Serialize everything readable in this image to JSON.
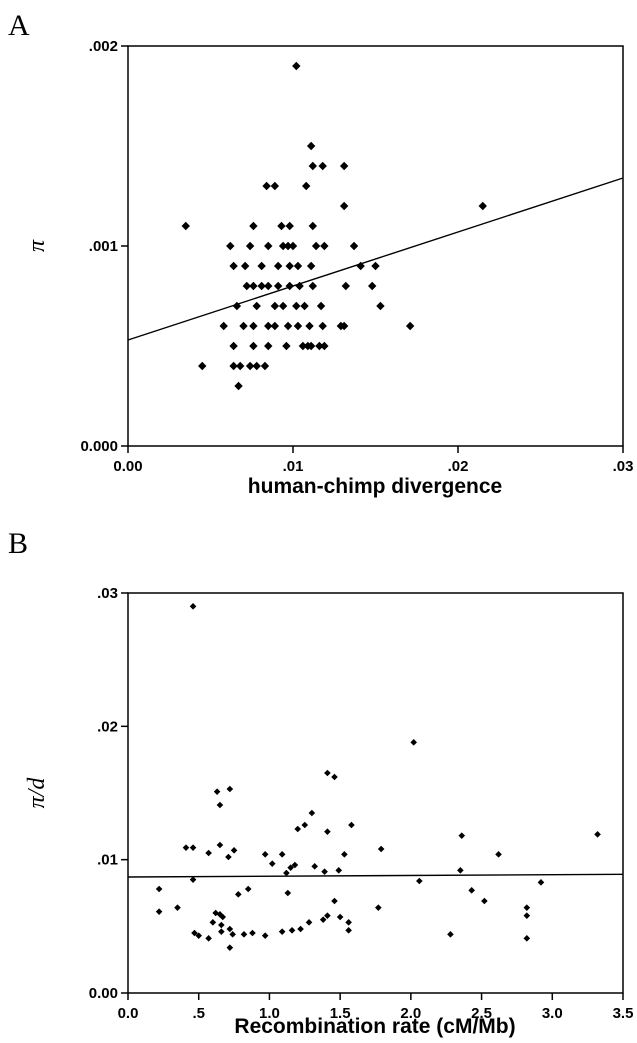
{
  "chart_data": [
    {
      "panel": "A",
      "type": "scatter",
      "xlabel": "human-chimp divergence",
      "ylabel": "π",
      "xlim": [
        0,
        0.03
      ],
      "ylim": [
        0,
        0.002
      ],
      "xticks": [
        {
          "v": 0.0,
          "label": "0.00"
        },
        {
          "v": 0.01,
          "label": ".01"
        },
        {
          "v": 0.02,
          "label": ".02"
        },
        {
          "v": 0.03,
          "label": ".03"
        }
      ],
      "yticks": [
        {
          "v": 0.0,
          "label": "0.000"
        },
        {
          "v": 0.001,
          "label": ".001"
        },
        {
          "v": 0.002,
          "label": ".002"
        }
      ],
      "grid": false,
      "fit_line": [
        [
          0.0,
          0.00053
        ],
        [
          0.03,
          0.00134
        ]
      ],
      "points": [
        [
          0.0102,
          0.0019
        ],
        [
          0.0111,
          0.0015
        ],
        [
          0.0112,
          0.0014
        ],
        [
          0.0118,
          0.0014
        ],
        [
          0.0131,
          0.0014
        ],
        [
          0.0084,
          0.0013
        ],
        [
          0.0089,
          0.0013
        ],
        [
          0.0108,
          0.0013
        ],
        [
          0.0131,
          0.0012
        ],
        [
          0.0215,
          0.0012
        ],
        [
          0.0035,
          0.0011
        ],
        [
          0.0076,
          0.0011
        ],
        [
          0.0093,
          0.0011
        ],
        [
          0.0098,
          0.0011
        ],
        [
          0.0112,
          0.0011
        ],
        [
          0.0062,
          0.001
        ],
        [
          0.0074,
          0.001
        ],
        [
          0.0085,
          0.001
        ],
        [
          0.0094,
          0.001
        ],
        [
          0.0097,
          0.001
        ],
        [
          0.01,
          0.001
        ],
        [
          0.0114,
          0.001
        ],
        [
          0.0119,
          0.001
        ],
        [
          0.0137,
          0.001
        ],
        [
          0.0064,
          0.0009
        ],
        [
          0.0071,
          0.0009
        ],
        [
          0.0081,
          0.0009
        ],
        [
          0.0091,
          0.0009
        ],
        [
          0.0098,
          0.0009
        ],
        [
          0.0103,
          0.0009
        ],
        [
          0.0111,
          0.0009
        ],
        [
          0.0141,
          0.0009
        ],
        [
          0.015,
          0.0009
        ],
        [
          0.0072,
          0.0008
        ],
        [
          0.0076,
          0.0008
        ],
        [
          0.0081,
          0.0008
        ],
        [
          0.0085,
          0.0008
        ],
        [
          0.0091,
          0.0008
        ],
        [
          0.0098,
          0.0008
        ],
        [
          0.0104,
          0.0008
        ],
        [
          0.0112,
          0.0008
        ],
        [
          0.0132,
          0.0008
        ],
        [
          0.0148,
          0.0008
        ],
        [
          0.0066,
          0.0007
        ],
        [
          0.0078,
          0.0007
        ],
        [
          0.0089,
          0.0007
        ],
        [
          0.0094,
          0.0007
        ],
        [
          0.0102,
          0.0007
        ],
        [
          0.0107,
          0.0007
        ],
        [
          0.0117,
          0.0007
        ],
        [
          0.0153,
          0.0007
        ],
        [
          0.0058,
          0.0006
        ],
        [
          0.007,
          0.0006
        ],
        [
          0.0076,
          0.0006
        ],
        [
          0.0085,
          0.0006
        ],
        [
          0.0089,
          0.0006
        ],
        [
          0.0097,
          0.0006
        ],
        [
          0.0103,
          0.0006
        ],
        [
          0.011,
          0.0006
        ],
        [
          0.0118,
          0.0006
        ],
        [
          0.0129,
          0.0006
        ],
        [
          0.0131,
          0.0006
        ],
        [
          0.0171,
          0.0006
        ],
        [
          0.0064,
          0.0005
        ],
        [
          0.0076,
          0.0005
        ],
        [
          0.0085,
          0.0005
        ],
        [
          0.0096,
          0.0005
        ],
        [
          0.0106,
          0.0005
        ],
        [
          0.0109,
          0.0005
        ],
        [
          0.0111,
          0.0005
        ],
        [
          0.0116,
          0.0005
        ],
        [
          0.0119,
          0.0005
        ],
        [
          0.0045,
          0.0004
        ],
        [
          0.0064,
          0.0004
        ],
        [
          0.0068,
          0.0004
        ],
        [
          0.0074,
          0.0004
        ],
        [
          0.0078,
          0.0004
        ],
        [
          0.0083,
          0.0004
        ],
        [
          0.0067,
          0.0003
        ]
      ]
    },
    {
      "panel": "B",
      "type": "scatter",
      "xlabel": "Recombination rate (cM/Mb)",
      "ylabel": "π/d",
      "xlim": [
        0,
        3.5
      ],
      "ylim": [
        0,
        0.03
      ],
      "xticks": [
        {
          "v": 0.0,
          "label": "0.0"
        },
        {
          "v": 0.5,
          "label": ".5"
        },
        {
          "v": 1.0,
          "label": "1.0"
        },
        {
          "v": 1.5,
          "label": "1.5"
        },
        {
          "v": 2.0,
          "label": "2.0"
        },
        {
          "v": 2.5,
          "label": "2.5"
        },
        {
          "v": 3.0,
          "label": "3.0"
        },
        {
          "v": 3.5,
          "label": "3.5"
        }
      ],
      "yticks": [
        {
          "v": 0.0,
          "label": "0.00"
        },
        {
          "v": 0.01,
          "label": ".01"
        },
        {
          "v": 0.02,
          "label": ".02"
        },
        {
          "v": 0.03,
          "label": ".03"
        }
      ],
      "grid": false,
      "fit_line": [
        [
          0.0,
          0.0087
        ],
        [
          3.5,
          0.0089
        ]
      ],
      "points": [
        [
          0.46,
          0.029
        ],
        [
          2.02,
          0.0188
        ],
        [
          1.41,
          0.0165
        ],
        [
          1.46,
          0.0162
        ],
        [
          0.72,
          0.0153
        ],
        [
          0.63,
          0.0151
        ],
        [
          0.65,
          0.0141
        ],
        [
          1.3,
          0.0135
        ],
        [
          1.25,
          0.0126
        ],
        [
          1.2,
          0.0123
        ],
        [
          1.58,
          0.0126
        ],
        [
          1.41,
          0.0121
        ],
        [
          3.32,
          0.0119
        ],
        [
          2.36,
          0.0118
        ],
        [
          0.41,
          0.0109
        ],
        [
          0.46,
          0.0109
        ],
        [
          0.65,
          0.0111
        ],
        [
          0.75,
          0.0107
        ],
        [
          0.57,
          0.0105
        ],
        [
          0.71,
          0.0102
        ],
        [
          0.97,
          0.0104
        ],
        [
          1.09,
          0.0104
        ],
        [
          1.53,
          0.0104
        ],
        [
          2.62,
          0.0104
        ],
        [
          1.79,
          0.0108
        ],
        [
          1.02,
          0.0097
        ],
        [
          1.18,
          0.0096
        ],
        [
          1.32,
          0.0095
        ],
        [
          1.15,
          0.0094
        ],
        [
          1.39,
          0.0091
        ],
        [
          1.49,
          0.0092
        ],
        [
          2.35,
          0.0092
        ],
        [
          1.12,
          0.009
        ],
        [
          0.46,
          0.0085
        ],
        [
          2.06,
          0.0084
        ],
        [
          2.92,
          0.0083
        ],
        [
          0.85,
          0.0078
        ],
        [
          1.13,
          0.0075
        ],
        [
          2.43,
          0.0077
        ],
        [
          0.78,
          0.0074
        ],
        [
          1.46,
          0.0069
        ],
        [
          2.52,
          0.0069
        ],
        [
          0.22,
          0.0078
        ],
        [
          0.35,
          0.0064
        ],
        [
          1.77,
          0.0064
        ],
        [
          2.82,
          0.0064
        ],
        [
          0.22,
          0.0061
        ],
        [
          0.62,
          0.006
        ],
        [
          0.65,
          0.0059
        ],
        [
          0.67,
          0.0057
        ],
        [
          1.41,
          0.0058
        ],
        [
          0.6,
          0.0053
        ],
        [
          0.66,
          0.0051
        ],
        [
          0.72,
          0.0048
        ],
        [
          1.28,
          0.0053
        ],
        [
          1.38,
          0.0055
        ],
        [
          1.5,
          0.0057
        ],
        [
          1.56,
          0.0053
        ],
        [
          2.82,
          0.0058
        ],
        [
          0.47,
          0.0045
        ],
        [
          0.5,
          0.0043
        ],
        [
          0.57,
          0.0041
        ],
        [
          0.66,
          0.0046
        ],
        [
          0.74,
          0.0044
        ],
        [
          0.82,
          0.0044
        ],
        [
          0.88,
          0.0045
        ],
        [
          0.97,
          0.0043
        ],
        [
          1.09,
          0.0046
        ],
        [
          1.16,
          0.0047
        ],
        [
          1.22,
          0.0048
        ],
        [
          1.56,
          0.0047
        ],
        [
          2.28,
          0.0044
        ],
        [
          2.82,
          0.0041
        ],
        [
          0.72,
          0.0034
        ]
      ]
    }
  ]
}
